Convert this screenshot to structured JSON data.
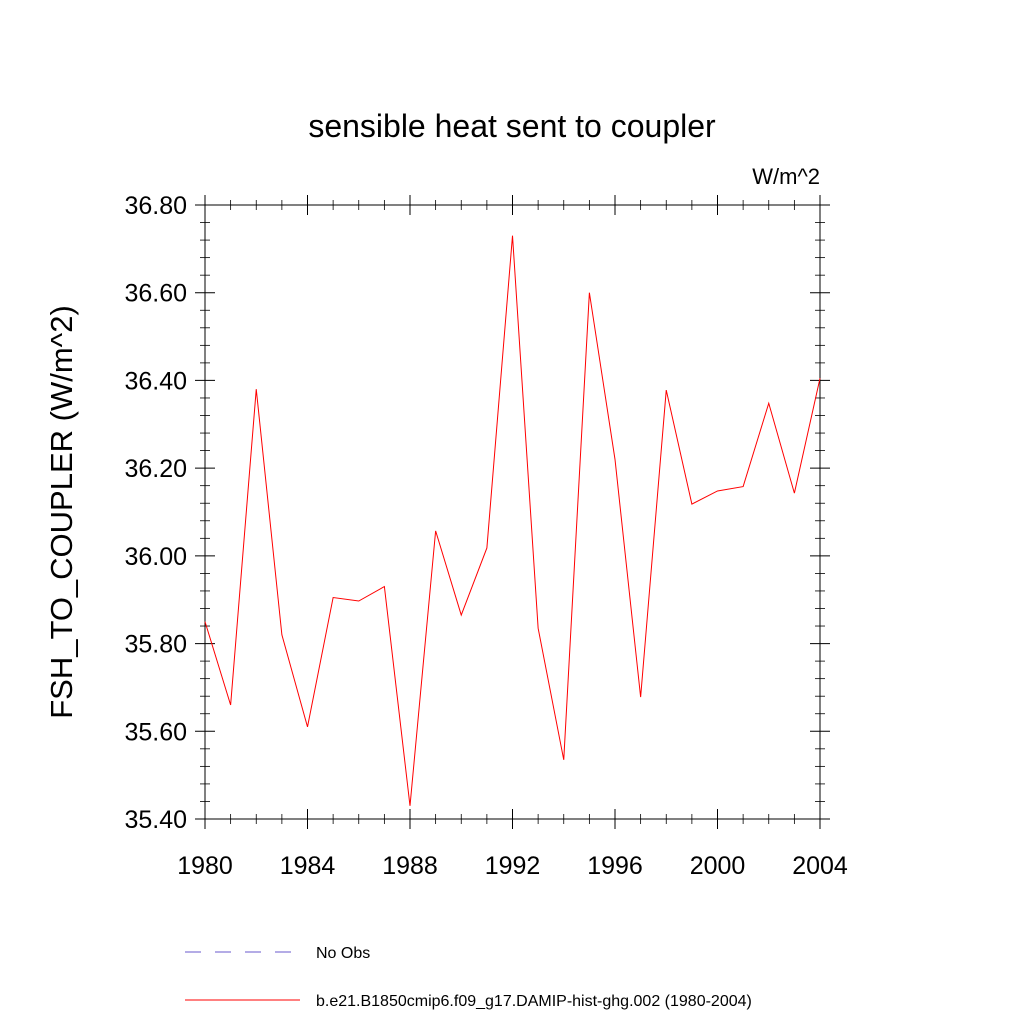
{
  "chart_data": {
    "type": "line",
    "title": "sensible heat sent to coupler",
    "units": "W/m^2",
    "ylabel": "FSH_TO_COUPLER  (W/m^2)",
    "xlabel": "",
    "xlim": [
      1980,
      2004
    ],
    "ylim": [
      35.4,
      36.8
    ],
    "xticks": [
      "1980",
      "1984",
      "1988",
      "1992",
      "1996",
      "2000",
      "2004"
    ],
    "yticks": [
      "35.40",
      "35.60",
      "35.80",
      "36.00",
      "36.20",
      "36.40",
      "36.60",
      "36.80"
    ],
    "grid": false,
    "x": [
      1980,
      1981,
      1982,
      1983,
      1984,
      1985,
      1986,
      1987,
      1988,
      1989,
      1990,
      1991,
      1992,
      1993,
      1994,
      1995,
      1996,
      1997,
      1998,
      1999,
      2000,
      2001,
      2002,
      2003,
      2004
    ],
    "series": [
      {
        "name": "b.e21.B1850cmip6.f09_g17.DAMIP-hist-ghg.002 (1980-2004)",
        "color": "#ff0000",
        "style": "solid",
        "values": [
          35.85,
          35.66,
          36.38,
          35.82,
          35.61,
          35.905,
          35.897,
          35.93,
          35.43,
          36.057,
          35.865,
          36.018,
          36.73,
          35.835,
          35.535,
          36.6,
          36.22,
          35.678,
          36.378,
          36.118,
          36.148,
          36.158,
          36.348,
          36.143,
          36.405
        ]
      }
    ],
    "legend": {
      "placement": "bottom",
      "entries": [
        {
          "label": "No Obs",
          "color": "#6a5acd",
          "style": "dashed"
        },
        {
          "label": "b.e21.B1850cmip6.f09_g17.DAMIP-hist-ghg.002 (1980-2004)",
          "color": "#ff0000",
          "style": "solid"
        }
      ]
    }
  }
}
